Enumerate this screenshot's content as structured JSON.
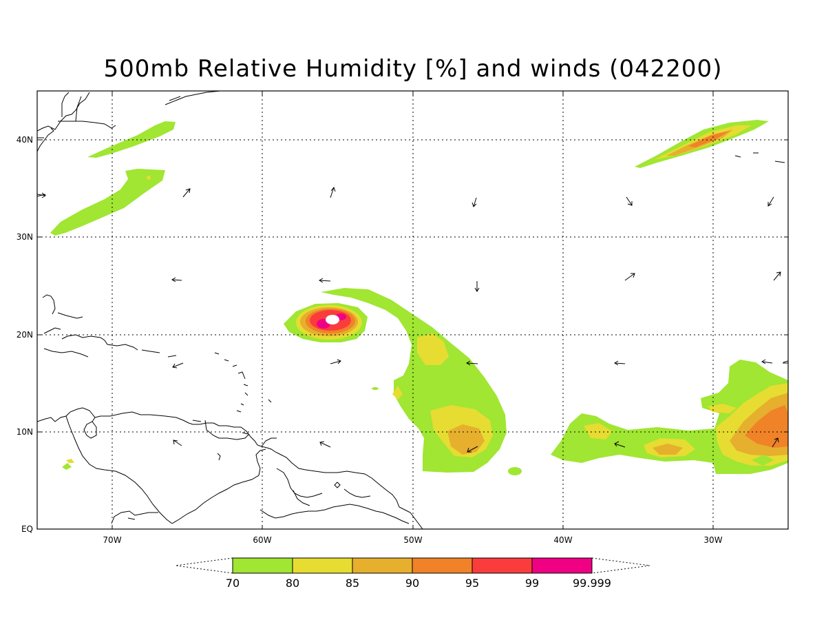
{
  "title": "500mb Relative Humidity [%] and winds (042200)",
  "latitude_labels": [
    "40N",
    "30N",
    "20N",
    "10N",
    "EQ"
  ],
  "longitude_labels": [
    "70W",
    "60W",
    "50W",
    "40W",
    "30W"
  ],
  "colorbar": {
    "labels": [
      "70",
      "80",
      "85",
      "90",
      "95",
      "99",
      "99.999"
    ],
    "colors": [
      "#a0e632",
      "#e6dc32",
      "#e6af2d",
      "#f08228",
      "#fa3c3c",
      "#f00082"
    ]
  },
  "colors": {
    "coast": "#000000",
    "grid": "#000000",
    "background": "#ffffff"
  }
}
